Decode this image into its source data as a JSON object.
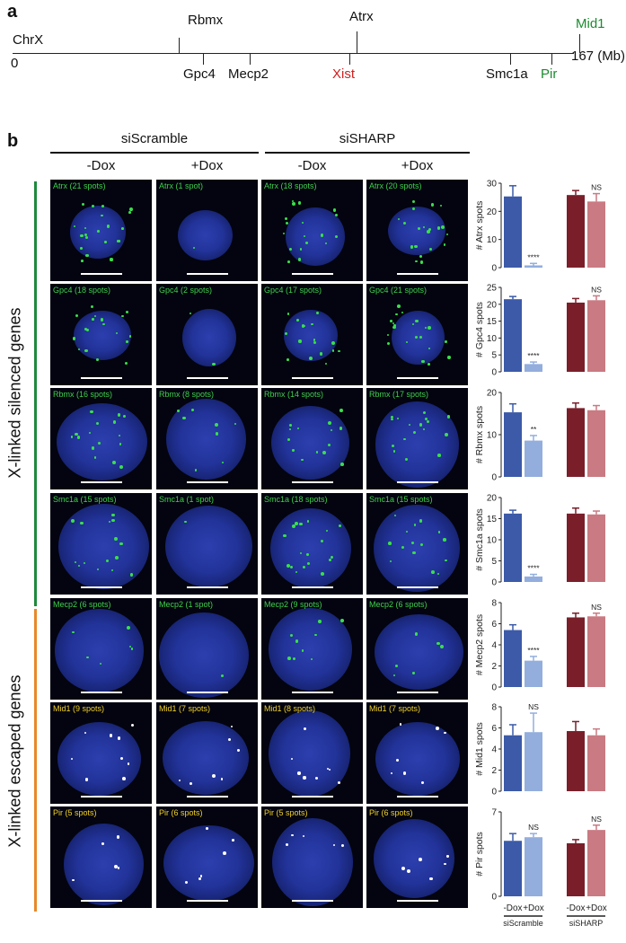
{
  "panel_a": {
    "letter": "a",
    "chr_label": "ChrX",
    "start_label": "0",
    "end_label": "167 (Mb)",
    "genes_above": [
      {
        "name": "Rbmx",
        "color": "#111111"
      },
      {
        "name": "Atrx",
        "color": "#111111"
      },
      {
        "name": "Mid1",
        "color": "#1a8c2e"
      }
    ],
    "genes_below": [
      {
        "name": "Gpc4",
        "color": "#111111"
      },
      {
        "name": "Mecp2",
        "color": "#111111"
      },
      {
        "name": "Xist",
        "color": "#d01f1f"
      },
      {
        "name": "Smc1a",
        "color": "#111111"
      },
      {
        "name": "Pir",
        "color": "#1a8c2e"
      }
    ]
  },
  "panel_b": {
    "letter": "b",
    "group_headers": [
      "siScramble",
      "siSHARP"
    ],
    "column_headers": [
      "-Dox",
      "+Dox",
      "-Dox",
      "+Dox"
    ],
    "row_group_labels": {
      "silenced": "X-linked silenced genes",
      "escaped": "X-linked escaped genes",
      "silenced_color": "#1e8a3c",
      "escaped_color": "#e8892a"
    },
    "image_labels": [
      [
        "Atrx (21 spots)",
        "Atrx (1 spot)",
        "Atrx (18 spots)",
        "Atrx (20 spots)"
      ],
      [
        "Gpc4 (18 spots)",
        "Gpc4 (2 spots)",
        "Gpc4 (17 spots)",
        "Gpc4 (21 spots)"
      ],
      [
        "Rbmx (16 spots)",
        "Rbmx (8 spots)",
        "Rbmx (14 spots)",
        "Rbmx (17 spots)"
      ],
      [
        "Smc1a (15 spots)",
        "Smc1a (1 spot)",
        "Smc1a (18 spots)",
        "Smc1a (15 spots)"
      ],
      [
        "Mecp2 (6 spots)",
        "Mecp2 (1 spot)",
        "Mecp2 (9 spots)",
        "Mecp2 (6 spots)"
      ],
      [
        "Mid1 (9 spots)",
        "Mid1 (7 spots)",
        "Mid1 (8 spots)",
        "Mid1 (7 spots)"
      ],
      [
        "Pir (5 spots)",
        "Pir (6 spots)",
        "Pir (5 spots)",
        "Pir (6 spots)"
      ]
    ],
    "label_colors": {
      "silenced": "#3fd24a",
      "escaped": "#f2d22a"
    }
  },
  "chart_data": {
    "type": "bar",
    "categories": [
      "-Dox",
      "+Dox",
      "-Dox",
      "+Dox"
    ],
    "group_labels": [
      "siScramble",
      "siSHARP"
    ],
    "bar_colors": [
      "#3c5aa8",
      "#93aedd",
      "#7a1f2a",
      "#c97a82"
    ],
    "panels": [
      {
        "ylabel": "# Atrx spots",
        "ylim": [
          0,
          30
        ],
        "yticks": [
          0,
          10,
          20,
          30
        ],
        "values": [
          25.3,
          0.8,
          25.8,
          23.5
        ],
        "errors": [
          3.8,
          0.7,
          1.6,
          2.8
        ],
        "annotations": [
          "",
          "****",
          "",
          "NS"
        ]
      },
      {
        "ylabel": "# Gpc4 spots",
        "ylim": [
          0,
          25
        ],
        "yticks": [
          0,
          5,
          10,
          15,
          20,
          25
        ],
        "values": [
          21.5,
          2.3,
          20.5,
          21.2
        ],
        "errors": [
          0.8,
          0.6,
          1.2,
          1.3
        ],
        "annotations": [
          "",
          "****",
          "",
          "NS"
        ]
      },
      {
        "ylabel": "# Rbmx spots",
        "ylim": [
          0,
          20
        ],
        "yticks": [
          0,
          10,
          20
        ],
        "values": [
          15.3,
          8.6,
          16.3,
          15.8
        ],
        "errors": [
          2.0,
          1.2,
          1.2,
          1.1
        ],
        "annotations": [
          "",
          "**",
          "",
          ""
        ]
      },
      {
        "ylabel": "# Smc1a spots",
        "ylim": [
          0,
          20
        ],
        "yticks": [
          0,
          5,
          10,
          15,
          20
        ],
        "values": [
          16.2,
          1.3,
          16.2,
          16.0
        ],
        "errors": [
          0.8,
          0.5,
          1.3,
          0.8
        ],
        "annotations": [
          "",
          "****",
          "",
          ""
        ]
      },
      {
        "ylabel": "# Mecp2 spots",
        "ylim": [
          0,
          8
        ],
        "yticks": [
          0,
          2,
          4,
          6,
          8
        ],
        "values": [
          5.4,
          2.5,
          6.6,
          6.7
        ],
        "errors": [
          0.5,
          0.4,
          0.4,
          0.3
        ],
        "annotations": [
          "",
          "****",
          "",
          "NS"
        ]
      },
      {
        "ylabel": "# Mid1 spots",
        "ylim": [
          0,
          8
        ],
        "yticks": [
          0,
          2,
          4,
          6,
          8
        ],
        "values": [
          5.3,
          5.6,
          5.7,
          5.3
        ],
        "errors": [
          1.0,
          1.8,
          0.9,
          0.6
        ],
        "annotations": [
          "",
          "NS",
          "",
          ""
        ]
      },
      {
        "ylabel": "# Pir spots",
        "ylim": [
          0,
          7
        ],
        "yticks": [
          0,
          7
        ],
        "values": [
          4.6,
          4.9,
          4.4,
          5.5
        ],
        "errors": [
          0.6,
          0.3,
          0.3,
          0.4
        ],
        "annotations": [
          "",
          "NS",
          "",
          "NS"
        ]
      }
    ]
  }
}
